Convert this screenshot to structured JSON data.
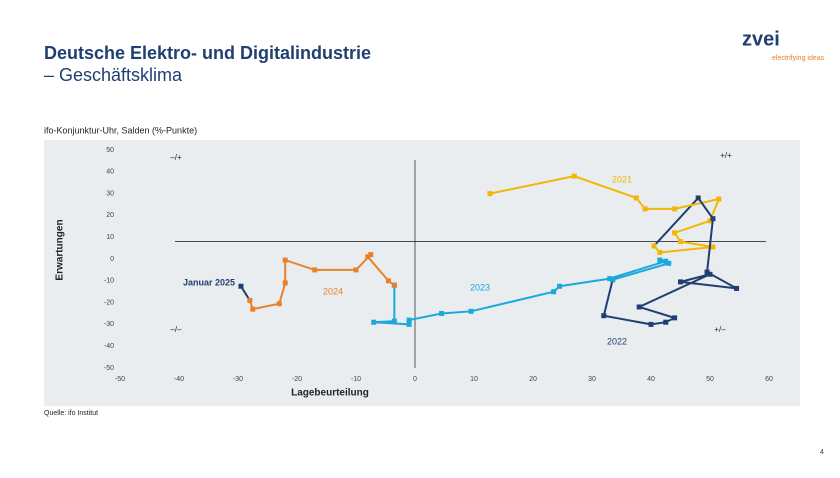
{
  "header": {
    "title": "Deutsche Elektro- und Digitalindustrie",
    "subtitle": "– Geschäftsklima",
    "logo": "zvei",
    "logo_tagline": "electrifying ideas"
  },
  "chart_data": {
    "type": "line",
    "title": "ifo-Konjunktur-Uhr, Salden (%-Punkte)",
    "x_label": "Lagebeurteilung",
    "y_label": "Erwartungen",
    "xlim": [
      -50,
      60
    ],
    "xticks": [
      -50,
      -40,
      -30,
      -20,
      -10,
      0,
      10,
      20,
      30,
      40,
      50,
      60
    ],
    "ylim": [
      -50,
      50
    ],
    "yticks": [
      -50,
      -40,
      -30,
      -20,
      -10,
      0,
      10,
      20,
      30,
      40,
      50
    ],
    "reference_lines": {
      "x": 0,
      "y": 8
    },
    "quadrant_labels": [
      "–/+",
      "+/+",
      "–/–",
      "+/–"
    ],
    "series": [
      {
        "name": "2021",
        "color": "#f2b705",
        "x": [
          12.7,
          27,
          37.5,
          39,
          44,
          51.5,
          50,
          44,
          45,
          50.5,
          41.5,
          40.5
        ],
        "values": [
          30,
          38,
          28,
          23,
          23,
          27.5,
          17.5,
          12,
          8,
          5.5,
          3,
          6
        ]
      },
      {
        "name": "2022",
        "color": "#1f3f73",
        "x": [
          48,
          50.5,
          49.5,
          54.5,
          45,
          50,
          38,
          44,
          42.5,
          40,
          32,
          33.5
        ],
        "values": [
          28,
          18.5,
          -6,
          -13.5,
          -10.5,
          -7,
          -22,
          -27,
          -29,
          -30,
          -26,
          -9.5
        ]
      },
      {
        "name": "2023",
        "color": "#1ba9dc",
        "x": [
          33.5,
          43,
          41.5,
          42.5,
          33,
          24.5,
          23.5,
          9.5,
          4.5,
          -1,
          -1,
          -7,
          -3.5,
          -3.5
        ],
        "values": [
          -9.5,
          -2,
          -0.5,
          -1,
          -9,
          -12.5,
          -15,
          -24,
          -25,
          -28,
          -30,
          -29,
          -28.5,
          -12
        ]
      },
      {
        "name": "2024",
        "color": "#e8822a",
        "x": [
          -3.5,
          -4.5,
          -8,
          -7.5,
          -10,
          -17,
          -22,
          -22,
          -23,
          -27.5,
          -28
        ],
        "values": [
          -12,
          -10,
          1,
          2,
          -5,
          -5,
          -0.5,
          -11,
          -20.5,
          -23,
          -19
        ]
      },
      {
        "name": "Januar 2025",
        "color": "#1f3f73",
        "x": [
          -29.5
        ],
        "values": [
          -12.5
        ]
      }
    ]
  },
  "source": "Quelle: ifo Institut",
  "page_number": "4"
}
